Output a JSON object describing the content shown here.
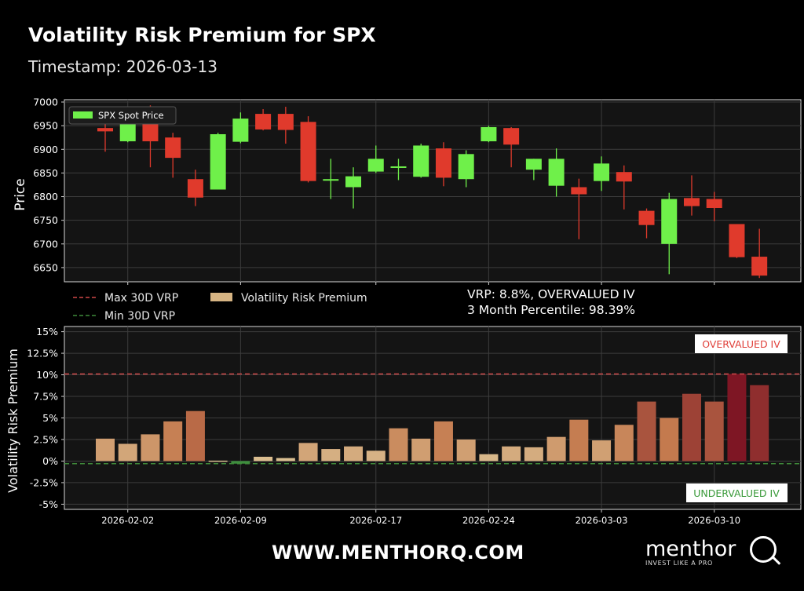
{
  "header": {
    "title": "Volatility Risk Premium for SPX",
    "subtitle": "Timestamp: 2026-03-13"
  },
  "footer": {
    "website": "WWW.MENTHORQ.COM",
    "brand_name": "menthor",
    "brand_tagline": "INVEST LIKE A PRO"
  },
  "chart_data": [
    {
      "type": "candlestick",
      "ylabel": "Price",
      "ylim": [
        6620,
        7005
      ],
      "yticks": [
        7000,
        6950,
        6900,
        6850,
        6800,
        6750,
        6700,
        6650
      ],
      "grid": true,
      "legend": {
        "placement": "top-left",
        "label": "SPX Spot Price"
      },
      "colors": {
        "up": "#6ff04a",
        "down": "#e03a2c"
      },
      "candles": [
        {
          "date": "2026-01-30",
          "open": 6945,
          "high": 6965,
          "low": 6895,
          "close": 6938
        },
        {
          "date": "2026-02-02",
          "open": 6917,
          "high": 6985,
          "low": 6915,
          "close": 6980
        },
        {
          "date": "2026-02-03",
          "open": 6983,
          "high": 6993,
          "low": 6862,
          "close": 6917
        },
        {
          "date": "2026-02-04",
          "open": 6925,
          "high": 6935,
          "low": 6840,
          "close": 6882
        },
        {
          "date": "2026-02-05",
          "open": 6837,
          "high": 6857,
          "low": 6780,
          "close": 6798
        },
        {
          "date": "2026-02-06",
          "open": 6815,
          "high": 6935,
          "low": 6815,
          "close": 6932
        },
        {
          "date": "2026-02-09",
          "open": 6916,
          "high": 6978,
          "low": 6913,
          "close": 6965
        },
        {
          "date": "2026-02-10",
          "open": 6975,
          "high": 6985,
          "low": 6940,
          "close": 6942
        },
        {
          "date": "2026-02-11",
          "open": 6975,
          "high": 6990,
          "low": 6912,
          "close": 6941
        },
        {
          "date": "2026-02-12",
          "open": 6958,
          "high": 6970,
          "low": 6830,
          "close": 6833
        },
        {
          "date": "2026-02-13",
          "open": 6835,
          "high": 6880,
          "low": 6795,
          "close": 6837
        },
        {
          "date": "2026-02-16",
          "open": 6820,
          "high": 6862,
          "low": 6775,
          "close": 6843
        },
        {
          "date": "2026-02-17",
          "open": 6853,
          "high": 6908,
          "low": 6850,
          "close": 6880
        },
        {
          "date": "2026-02-18",
          "open": 6862,
          "high": 6880,
          "low": 6835,
          "close": 6864
        },
        {
          "date": "2026-02-19",
          "open": 6842,
          "high": 6912,
          "low": 6840,
          "close": 6908
        },
        {
          "date": "2026-02-20",
          "open": 6902,
          "high": 6915,
          "low": 6822,
          "close": 6840
        },
        {
          "date": "2026-02-23",
          "open": 6837,
          "high": 6898,
          "low": 6820,
          "close": 6890
        },
        {
          "date": "2026-02-24",
          "open": 6917,
          "high": 6950,
          "low": 6915,
          "close": 6947
        },
        {
          "date": "2026-02-25",
          "open": 6945,
          "high": 6947,
          "low": 6862,
          "close": 6910
        },
        {
          "date": "2026-02-26",
          "open": 6857,
          "high": 6880,
          "low": 6835,
          "close": 6880
        },
        {
          "date": "2026-02-27",
          "open": 6823,
          "high": 6902,
          "low": 6800,
          "close": 6880
        },
        {
          "date": "2026-03-02",
          "open": 6820,
          "high": 6838,
          "low": 6710,
          "close": 6805
        },
        {
          "date": "2026-03-03",
          "open": 6833,
          "high": 6885,
          "low": 6812,
          "close": 6870
        },
        {
          "date": "2026-03-04",
          "open": 6852,
          "high": 6866,
          "low": 6773,
          "close": 6832
        },
        {
          "date": "2026-03-05",
          "open": 6770,
          "high": 6775,
          "low": 6712,
          "close": 6740
        },
        {
          "date": "2026-03-06",
          "open": 6700,
          "high": 6808,
          "low": 6636,
          "close": 6795
        },
        {
          "date": "2026-03-09",
          "open": 6797,
          "high": 6845,
          "low": 6760,
          "close": 6780
        },
        {
          "date": "2026-03-10",
          "open": 6795,
          "high": 6810,
          "low": 6748,
          "close": 6776
        },
        {
          "date": "2026-03-11",
          "open": 6742,
          "high": 6742,
          "low": 6670,
          "close": 6672
        },
        {
          "date": "2026-03-12",
          "open": 6673,
          "high": 6732,
          "low": 6628,
          "close": 6633
        }
      ]
    },
    {
      "type": "bar",
      "ylabel": "Volatility Risk Premium",
      "ylim": [
        -5.6,
        15.6
      ],
      "yticks": [
        15,
        12.5,
        10,
        7.5,
        5,
        2.5,
        0,
        -2.5,
        -5
      ],
      "ytick_format": "%",
      "grid": true,
      "xticks": [
        "2026-02-02",
        "2026-02-09",
        "2026-02-17",
        "2026-02-24",
        "2026-03-03",
        "2026-03-10"
      ],
      "legend": {
        "placement": "top-left, outside",
        "entries": [
          "Max 30D VRP",
          "Min 30D VRP",
          "Volatility Risk Premium"
        ]
      },
      "annotation": {
        "line1": "VRP: 8.8%, OVERVALUED IV",
        "line2": "3 Month Percentile: 98.39%"
      },
      "zone_labels": {
        "overvalued": "OVERVALUED IV",
        "undervalued": "UNDERVALUED IV"
      },
      "max_30d_vrp": 10.1,
      "min_30d_vrp": -0.3,
      "colors": {
        "max_line": "#d04848",
        "min_line": "#3f8a3a",
        "overvalued": "#e0403a",
        "undervalued": "#3a9a3a"
      },
      "values": [
        2.6,
        2.0,
        3.1,
        4.6,
        5.8,
        0.05,
        -0.3,
        0.5,
        0.35,
        2.1,
        1.4,
        1.7,
        1.2,
        3.8,
        2.6,
        4.6,
        2.5,
        0.8,
        1.7,
        1.6,
        2.8,
        4.8,
        2.4,
        4.2,
        6.9,
        5.0,
        7.8,
        6.9,
        10.1,
        8.8
      ]
    }
  ]
}
